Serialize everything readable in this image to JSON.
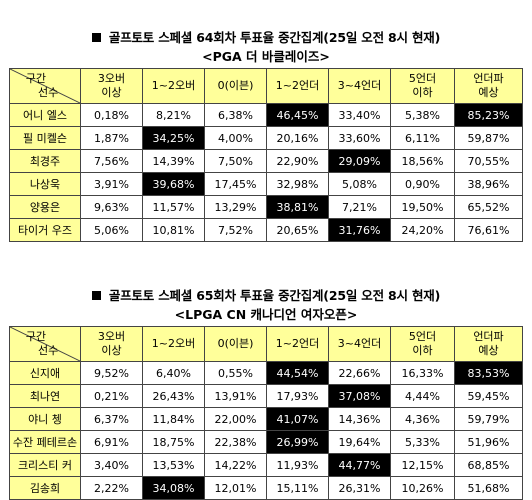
{
  "tables": [
    {
      "title": "골프토토 스페셜 64회차 투표율 중간집계(25일 오전 8시 현재)",
      "subtitle": "<PGA 더 바클레이즈>",
      "corner_top": "구간",
      "corner_bottom": "선수",
      "columns": [
        "3오버\n이상",
        "1~2오버",
        "0(이븐)",
        "1~2언더",
        "3~4언더",
        "5언더\n이하",
        "언더파\n예상"
      ],
      "rows": [
        {
          "name": "어니 엘스",
          "values": [
            "0,18%",
            "8,21%",
            "6,38%",
            "46,45%",
            "33,40%",
            "5,38%",
            "85,23%"
          ],
          "highlight": [
            3,
            6
          ]
        },
        {
          "name": "필 미켈슨",
          "values": [
            "1,87%",
            "34,25%",
            "4,00%",
            "20,16%",
            "33,60%",
            "6,11%",
            "59,87%"
          ],
          "highlight": [
            1
          ]
        },
        {
          "name": "최경주",
          "values": [
            "7,56%",
            "14,39%",
            "7,50%",
            "22,90%",
            "29,09%",
            "18,56%",
            "70,55%"
          ],
          "highlight": [
            4
          ]
        },
        {
          "name": "나상욱",
          "values": [
            "3,91%",
            "39,68%",
            "17,45%",
            "32,98%",
            "5,08%",
            "0,90%",
            "38,96%"
          ],
          "highlight": [
            1
          ]
        },
        {
          "name": "양용은",
          "values": [
            "9,63%",
            "11,57%",
            "13,29%",
            "38,81%",
            "7,21%",
            "19,50%",
            "65,52%"
          ],
          "highlight": [
            3
          ]
        },
        {
          "name": "타이거 우즈",
          "values": [
            "5,06%",
            "10,81%",
            "7,52%",
            "20,65%",
            "31,76%",
            "24,20%",
            "76,61%"
          ],
          "highlight": [
            4
          ]
        }
      ]
    },
    {
      "title": "골프토토 스페셜 65회차 투표율 중간집계(25일 오전 8시 현재)",
      "subtitle": "<LPGA CN 캐나디언 여자오픈>",
      "corner_top": "구간",
      "corner_bottom": "선수",
      "columns": [
        "3오버\n이상",
        "1~2오버",
        "0(이븐)",
        "1~2언더",
        "3~4언더",
        "5언더\n이하",
        "언더파\n예상"
      ],
      "rows": [
        {
          "name": "신지애",
          "values": [
            "9,52%",
            "6,40%",
            "0,55%",
            "44,54%",
            "22,66%",
            "16,33%",
            "83,53%"
          ],
          "highlight": [
            3,
            6
          ]
        },
        {
          "name": "최나연",
          "values": [
            "0,21%",
            "26,43%",
            "13,91%",
            "17,93%",
            "37,08%",
            "4,44%",
            "59,45%"
          ],
          "highlight": [
            4
          ]
        },
        {
          "name": "야니 쳉",
          "values": [
            "6,37%",
            "11,84%",
            "22,00%",
            "41,07%",
            "14,36%",
            "4,36%",
            "59,79%"
          ],
          "highlight": [
            3
          ]
        },
        {
          "name": "수잔 페테르손",
          "values": [
            "6,91%",
            "18,75%",
            "22,38%",
            "26,99%",
            "19,64%",
            "5,33%",
            "51,96%"
          ],
          "highlight": [
            3
          ]
        },
        {
          "name": "크리스티 커",
          "values": [
            "3,40%",
            "13,53%",
            "14,22%",
            "11,93%",
            "44,77%",
            "12,15%",
            "68,85%"
          ],
          "highlight": [
            4
          ]
        },
        {
          "name": "김송희",
          "values": [
            "2,22%",
            "34,08%",
            "12,01%",
            "15,11%",
            "26,31%",
            "10,26%",
            "51,68%"
          ],
          "highlight": [
            1
          ]
        }
      ]
    }
  ],
  "colors": {
    "header_bg": "#ffff9a",
    "name_bg": "#ffff9a",
    "highlight_bg": "#000000",
    "highlight_text": "#ffffff"
  }
}
